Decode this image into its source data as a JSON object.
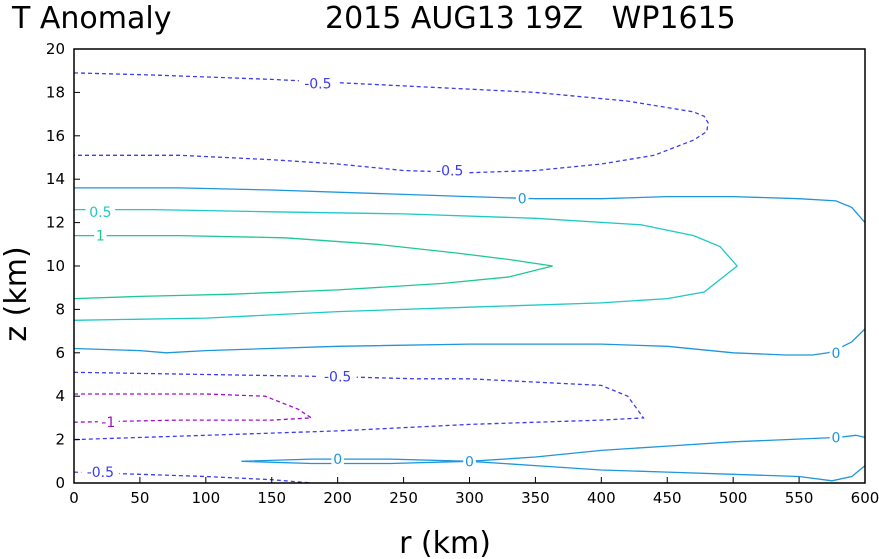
{
  "title": {
    "left": "T Anomaly",
    "right": "2015 AUG13 19Z   WP1615"
  },
  "chart_data": {
    "type": "contour",
    "title": "T Anomaly   2015 AUG13 19Z   WP1615",
    "xlabel": "r (km)",
    "ylabel": "z (km)",
    "xlim": [
      0,
      600
    ],
    "ylim": [
      0,
      20
    ],
    "xticks": [
      0,
      50,
      100,
      150,
      200,
      250,
      300,
      350,
      400,
      450,
      500,
      550,
      600
    ],
    "yticks": [
      0,
      2,
      4,
      6,
      8,
      10,
      12,
      14,
      16,
      18,
      20
    ],
    "grid": false,
    "colors": {
      "-1": "#a010c8",
      "-0.5": "#3c3cf0",
      "0": "#1e96dc",
      "0.5": "#1ec8c8",
      "1": "#1ec896"
    },
    "contours": [
      {
        "level": -0.5,
        "style": "dashed",
        "points": [
          [
            0,
            18.9
          ],
          [
            60,
            18.8
          ],
          [
            150,
            18.6
          ],
          [
            250,
            18.3
          ],
          [
            350,
            18.0
          ],
          [
            420,
            17.6
          ],
          [
            470,
            17.1
          ],
          [
            478,
            16.9
          ],
          [
            481,
            16.6
          ],
          [
            480,
            16.2
          ],
          [
            470,
            15.8
          ],
          [
            440,
            15.1
          ],
          [
            400,
            14.7
          ],
          [
            350,
            14.4
          ],
          [
            300,
            14.3
          ],
          [
            250,
            14.4
          ],
          [
            200,
            14.7
          ],
          [
            150,
            14.9
          ],
          [
            80,
            15.1
          ],
          [
            0,
            15.1
          ]
        ],
        "labels": [
          {
            "text": "-0.5",
            "x": 185,
            "y": 18.4
          },
          {
            "text": "-0.5",
            "x": 285,
            "y": 14.4
          }
        ]
      },
      {
        "level": 0,
        "style": "solid",
        "points": [
          [
            0,
            13.6
          ],
          [
            80,
            13.6
          ],
          [
            150,
            13.5
          ],
          [
            250,
            13.3
          ],
          [
            300,
            13.2
          ],
          [
            350,
            13.1
          ],
          [
            400,
            13.1
          ],
          [
            450,
            13.2
          ],
          [
            500,
            13.2
          ],
          [
            550,
            13.1
          ],
          [
            578,
            13.0
          ],
          [
            590,
            12.7
          ],
          [
            600,
            12.0
          ]
        ],
        "labels": [
          {
            "text": "0",
            "x": 340,
            "y": 13.1
          }
        ]
      },
      {
        "level": 0.5,
        "style": "solid",
        "points": [
          [
            0,
            12.6
          ],
          [
            60,
            12.6
          ],
          [
            150,
            12.5
          ],
          [
            250,
            12.4
          ],
          [
            350,
            12.2
          ],
          [
            430,
            11.9
          ],
          [
            470,
            11.4
          ],
          [
            490,
            10.9
          ],
          [
            503,
            10.0
          ],
          [
            478,
            8.8
          ],
          [
            450,
            8.5
          ],
          [
            400,
            8.3
          ],
          [
            300,
            8.1
          ],
          [
            200,
            7.9
          ],
          [
            100,
            7.6
          ],
          [
            0,
            7.5
          ]
        ],
        "labels": [
          {
            "text": "0.5",
            "x": 20,
            "y": 12.5
          }
        ]
      },
      {
        "level": 1,
        "style": "solid",
        "points": [
          [
            0,
            11.4
          ],
          [
            80,
            11.4
          ],
          [
            160,
            11.3
          ],
          [
            230,
            11.0
          ],
          [
            290,
            10.6
          ],
          [
            330,
            10.3
          ],
          [
            363,
            10.0
          ],
          [
            330,
            9.5
          ],
          [
            280,
            9.2
          ],
          [
            200,
            8.9
          ],
          [
            120,
            8.7
          ],
          [
            50,
            8.6
          ],
          [
            0,
            8.5
          ]
        ],
        "labels": [
          {
            "text": "1",
            "x": 20,
            "y": 11.4
          }
        ]
      },
      {
        "level": 0,
        "style": "solid",
        "points": [
          [
            0,
            6.2
          ],
          [
            50,
            6.1
          ],
          [
            70,
            6.0
          ],
          [
            100,
            6.1
          ],
          [
            200,
            6.3
          ],
          [
            300,
            6.4
          ],
          [
            400,
            6.4
          ],
          [
            450,
            6.3
          ],
          [
            500,
            6.0
          ],
          [
            540,
            5.9
          ],
          [
            560,
            5.9
          ],
          [
            572,
            6.0
          ],
          [
            580,
            6.2
          ],
          [
            590,
            6.5
          ],
          [
            600,
            7.1
          ]
        ],
        "labels": [
          {
            "text": "0",
            "x": 578,
            "y": 6.0
          }
        ]
      },
      {
        "level": -0.5,
        "style": "dashed",
        "points": [
          [
            0,
            5.1
          ],
          [
            100,
            5.0
          ],
          [
            200,
            4.9
          ],
          [
            260,
            4.8
          ],
          [
            300,
            4.8
          ],
          [
            400,
            4.5
          ],
          [
            420,
            4.0
          ],
          [
            432,
            3.0
          ],
          [
            400,
            2.9
          ],
          [
            300,
            2.7
          ],
          [
            200,
            2.4
          ],
          [
            100,
            2.2
          ],
          [
            0,
            2.0
          ]
        ],
        "labels": [
          {
            "text": "-0.5",
            "x": 200,
            "y": 4.9
          }
        ]
      },
      {
        "level": -1,
        "style": "dashed",
        "points": [
          [
            0,
            4.1
          ],
          [
            100,
            4.1
          ],
          [
            145,
            4.0
          ],
          [
            170,
            3.4
          ],
          [
            180,
            3.0
          ],
          [
            150,
            2.9
          ],
          [
            80,
            2.9
          ],
          [
            0,
            2.8
          ]
        ],
        "labels": [
          {
            "text": "-1",
            "x": 26,
            "y": 2.8
          }
        ]
      },
      {
        "level": 0,
        "style": "solid",
        "points": [
          [
            127,
            1.0
          ],
          [
            180,
            1.1
          ],
          [
            240,
            1.1
          ],
          [
            300,
            1.0
          ],
          [
            240,
            0.9
          ],
          [
            180,
            0.9
          ],
          [
            127,
            1.0
          ]
        ],
        "labels": [
          {
            "text": "0",
            "x": 200,
            "y": 1.1
          }
        ]
      },
      {
        "level": 0,
        "style": "solid",
        "points": [
          [
            300,
            1.0
          ],
          [
            350,
            1.2
          ],
          [
            400,
            1.5
          ],
          [
            450,
            1.7
          ],
          [
            500,
            1.9
          ],
          [
            540,
            2.0
          ],
          [
            580,
            2.1
          ],
          [
            593,
            2.2
          ],
          [
            600,
            2.1
          ]
        ],
        "labels": [
          {
            "text": "0",
            "x": 578,
            "y": 2.1
          }
        ]
      },
      {
        "level": 0,
        "style": "solid",
        "points": [
          [
            300,
            1.0
          ],
          [
            350,
            0.8
          ],
          [
            400,
            0.6
          ],
          [
            450,
            0.5
          ],
          [
            500,
            0.4
          ],
          [
            550,
            0.3
          ],
          [
            575,
            0.1
          ],
          [
            590,
            0.3
          ],
          [
            600,
            0.8
          ]
        ],
        "labels": [
          {
            "text": "0",
            "x": 300,
            "y": 1.0
          }
        ]
      },
      {
        "level": -0.5,
        "style": "dashed",
        "points": [
          [
            0,
            0.5
          ],
          [
            50,
            0.4
          ],
          [
            100,
            0.3
          ],
          [
            150,
            0.15
          ],
          [
            180,
            0.0
          ]
        ],
        "labels": [
          {
            "text": "-0.5",
            "x": 20,
            "y": 0.5
          }
        ]
      }
    ]
  }
}
